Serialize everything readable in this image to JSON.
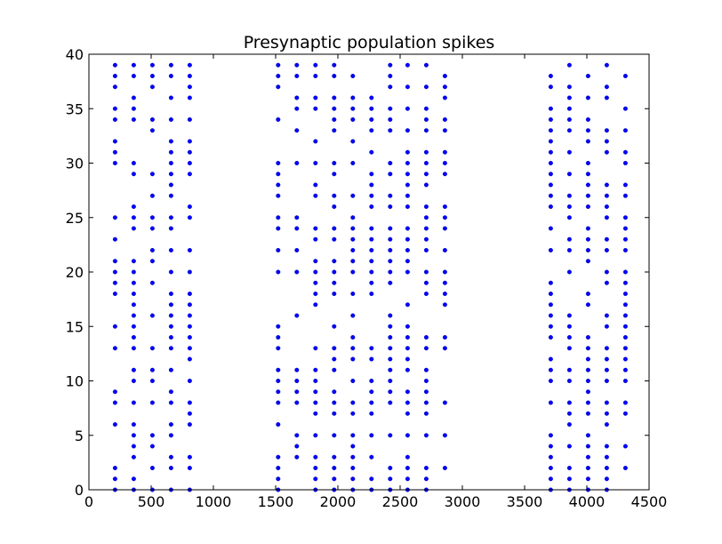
{
  "chart_data": {
    "type": "scatter",
    "title": "Presynaptic population spikes",
    "xlabel": "",
    "ylabel": "",
    "xlim": [
      0,
      4500
    ],
    "ylim": [
      0,
      40
    ],
    "x_ticks": [
      0,
      500,
      1000,
      1500,
      2000,
      2500,
      3000,
      3500,
      4000,
      4500
    ],
    "y_ticks": [
      0,
      5,
      10,
      15,
      20,
      25,
      30,
      35,
      40
    ],
    "x_tick_labels": [
      "0",
      "500",
      "1000",
      "1500",
      "2000",
      "2500",
      "3000",
      "3500",
      "4000",
      "4500"
    ],
    "y_tick_labels": [
      "0",
      "5",
      "10",
      "15",
      "20",
      "25",
      "30",
      "35",
      "40"
    ],
    "grid": false,
    "marker_color": "#0000ff",
    "spike_columns": [
      {
        "x": 210,
        "neurons": [
          0,
          1,
          2,
          6,
          8,
          9,
          13,
          15,
          18,
          19,
          20,
          21,
          23,
          25,
          30,
          31,
          32,
          34,
          35,
          37,
          38,
          39
        ]
      },
      {
        "x": 360,
        "neurons": [
          0,
          1,
          3,
          4,
          5,
          6,
          8,
          10,
          11,
          13,
          14,
          15,
          16,
          17,
          18,
          19,
          20,
          21,
          24,
          25,
          26,
          29,
          30,
          34,
          35,
          36,
          38,
          39
        ]
      },
      {
        "x": 510,
        "neurons": [
          0,
          2,
          4,
          5,
          8,
          10,
          11,
          13,
          16,
          19,
          21,
          22,
          24,
          25,
          27,
          29,
          33,
          34,
          37,
          38,
          39
        ]
      },
      {
        "x": 660,
        "neurons": [
          0,
          2,
          3,
          5,
          6,
          8,
          9,
          11,
          13,
          14,
          15,
          16,
          17,
          18,
          20,
          22,
          24,
          25,
          27,
          28,
          29,
          30,
          31,
          32,
          34,
          36,
          38,
          39
        ]
      },
      {
        "x": 810,
        "neurons": [
          0,
          2,
          3,
          6,
          7,
          8,
          10,
          12,
          13,
          14,
          15,
          16,
          17,
          18,
          20,
          22,
          25,
          26,
          29,
          30,
          31,
          32,
          34,
          36,
          37,
          38,
          39
        ]
      },
      {
        "x": 1520,
        "neurons": [
          0,
          1,
          2,
          3,
          6,
          8,
          9,
          10,
          11,
          13,
          14,
          15,
          20,
          22,
          24,
          25,
          27,
          28,
          29,
          30,
          34,
          37,
          38,
          39
        ]
      },
      {
        "x": 1670,
        "neurons": [
          3,
          4,
          5,
          8,
          9,
          10,
          11,
          16,
          20,
          22,
          24,
          25,
          30,
          33,
          35,
          36,
          38,
          39
        ]
      },
      {
        "x": 1820,
        "neurons": [
          0,
          1,
          2,
          3,
          5,
          7,
          8,
          9,
          10,
          11,
          13,
          17,
          18,
          19,
          20,
          21,
          23,
          24,
          27,
          28,
          30,
          32,
          35,
          36,
          38,
          39
        ]
      },
      {
        "x": 1970,
        "neurons": [
          0,
          1,
          2,
          3,
          5,
          7,
          8,
          9,
          11,
          12,
          13,
          15,
          18,
          19,
          20,
          21,
          23,
          24,
          26,
          27,
          29,
          30,
          33,
          34,
          35,
          36,
          38,
          39
        ]
      },
      {
        "x": 2120,
        "neurons": [
          0,
          1,
          2,
          3,
          4,
          5,
          7,
          8,
          10,
          12,
          13,
          14,
          16,
          18,
          20,
          21,
          22,
          23,
          24,
          25,
          27,
          30,
          32,
          34,
          35,
          36,
          38
        ]
      },
      {
        "x": 2270,
        "neurons": [
          0,
          1,
          3,
          5,
          7,
          8,
          9,
          10,
          12,
          13,
          18,
          19,
          20,
          21,
          22,
          23,
          24,
          26,
          27,
          28,
          29,
          31,
          33,
          34,
          35,
          36
        ]
      },
      {
        "x": 2420,
        "neurons": [
          0,
          1,
          2,
          5,
          8,
          9,
          10,
          11,
          12,
          13,
          14,
          15,
          16,
          19,
          20,
          21,
          22,
          23,
          24,
          26,
          27,
          29,
          30,
          33,
          34,
          35,
          37,
          38,
          39
        ]
      },
      {
        "x": 2560,
        "neurons": [
          0,
          1,
          2,
          3,
          5,
          7,
          8,
          9,
          11,
          12,
          13,
          14,
          15,
          17,
          20,
          21,
          22,
          23,
          24,
          26,
          27,
          28,
          29,
          30,
          31,
          33,
          35,
          37,
          39
        ]
      },
      {
        "x": 2710,
        "neurons": [
          0,
          1,
          2,
          5,
          7,
          8,
          9,
          10,
          11,
          13,
          14,
          18,
          19,
          20,
          22,
          23,
          24,
          25,
          26,
          28,
          29,
          30,
          31,
          33,
          34,
          35,
          37,
          39
        ]
      },
      {
        "x": 2860,
        "neurons": [
          2,
          5,
          8,
          13,
          14,
          17,
          18,
          19,
          20,
          22,
          24,
          25,
          26,
          29,
          30,
          31,
          33,
          34,
          36,
          37,
          38
        ]
      },
      {
        "x": 3710,
        "neurons": [
          0,
          1,
          2,
          3,
          4,
          5,
          8,
          10,
          11,
          12,
          14,
          15,
          16,
          17,
          18,
          19,
          22,
          24,
          26,
          27,
          28,
          29,
          30,
          31,
          32,
          33,
          34,
          35,
          37,
          38
        ]
      },
      {
        "x": 3860,
        "neurons": [
          0,
          1,
          2,
          4,
          6,
          7,
          8,
          10,
          11,
          13,
          14,
          15,
          16,
          20,
          22,
          23,
          25,
          26,
          27,
          29,
          31,
          33,
          34,
          35,
          36,
          37,
          39
        ]
      },
      {
        "x": 4010,
        "neurons": [
          0,
          1,
          2,
          3,
          4,
          5,
          7,
          8,
          9,
          10,
          11,
          12,
          13,
          14,
          17,
          18,
          21,
          22,
          23,
          24,
          26,
          27,
          28,
          29,
          30,
          32,
          33,
          34,
          36,
          38
        ]
      },
      {
        "x": 4160,
        "neurons": [
          0,
          1,
          2,
          3,
          4,
          6,
          7,
          8,
          10,
          11,
          12,
          13,
          15,
          16,
          19,
          20,
          22,
          23,
          25,
          26,
          27,
          28,
          31,
          32,
          33,
          36,
          37,
          39
        ]
      },
      {
        "x": 4310,
        "neurons": [
          2,
          4,
          7,
          8,
          10,
          11,
          12,
          13,
          14,
          15,
          16,
          17,
          18,
          19,
          20,
          22,
          23,
          24,
          25,
          27,
          28,
          30,
          31,
          33,
          35,
          38
        ]
      }
    ]
  }
}
